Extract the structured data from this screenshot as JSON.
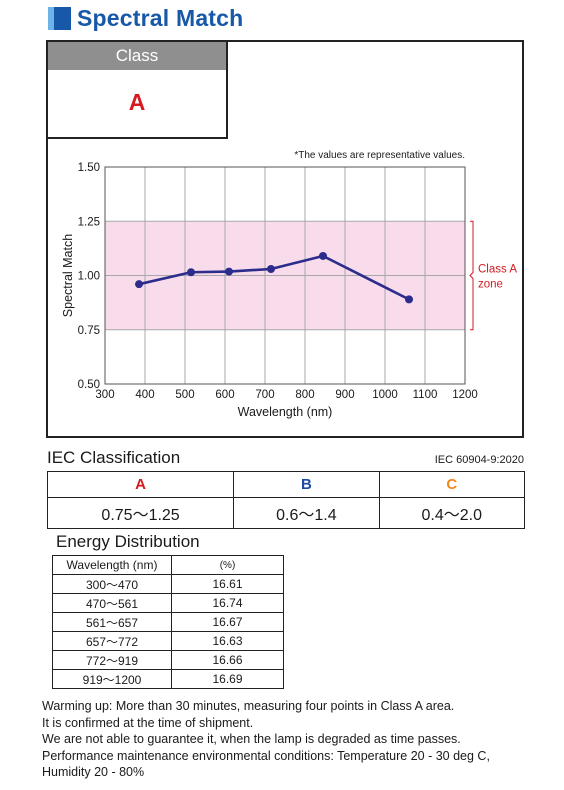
{
  "header": {
    "title": "Spectral Match"
  },
  "class_box": {
    "label": "Class",
    "value": "A"
  },
  "chart_note": "*The values are representative values.",
  "chart_data": {
    "type": "line",
    "xlabel": "Wavelength (nm)",
    "ylabel": "Spectral Match",
    "xlim": [
      300,
      1200
    ],
    "ylim": [
      0.5,
      1.5
    ],
    "xticks": [
      300,
      400,
      500,
      600,
      700,
      800,
      900,
      1000,
      1100,
      1200
    ],
    "yticks": [
      "0.50",
      "0.75",
      "1.00",
      "1.25",
      "1.50"
    ],
    "yticks_values": [
      0.5,
      0.75,
      1.0,
      1.25,
      1.5
    ],
    "grid": true,
    "band": {
      "from": 0.75,
      "to": 1.25,
      "color": "#f9dcec",
      "label_line1": "Class A",
      "label_line2": "zone",
      "label_color": "#d71920"
    },
    "series": [
      {
        "color": "#2b2c8c",
        "x": [
          385,
          515,
          610,
          715,
          845,
          1060
        ],
        "y": [
          0.96,
          1.015,
          1.018,
          1.03,
          1.09,
          0.89
        ]
      }
    ]
  },
  "iec": {
    "title": "IEC Classification",
    "standard": "IEC 60904-9:2020",
    "classes": [
      {
        "label": "A",
        "range": "0.75～1.25",
        "color": "#d71920"
      },
      {
        "label": "B",
        "range": "0.6～1.4",
        "color": "#1c4ba0"
      },
      {
        "label": "C",
        "range": "0.4～2.0",
        "color": "#f08a1c"
      }
    ]
  },
  "energy": {
    "title": "Energy Distribution",
    "col_wavelength": "Wavelength (nm)",
    "col_pct": "(%)",
    "rows": [
      {
        "range": "300～470",
        "pct": "16.61"
      },
      {
        "range": "470～561",
        "pct": "16.74"
      },
      {
        "range": "561～657",
        "pct": "16.67"
      },
      {
        "range": "657～772",
        "pct": "16.63"
      },
      {
        "range": "772～919",
        "pct": "16.66"
      },
      {
        "range": "919～1200",
        "pct": "16.69"
      }
    ]
  },
  "notes": [
    "Warming up: More than 30 minutes, measuring four points in Class A area.",
    "It is confirmed at the time of shipment.",
    "We are not able to guarantee it, when the lamp is degraded as time passes.",
    "Performance maintenance environmental conditions: Temperature 20 - 30 deg C,",
    "Humidity 20 - 80%"
  ]
}
